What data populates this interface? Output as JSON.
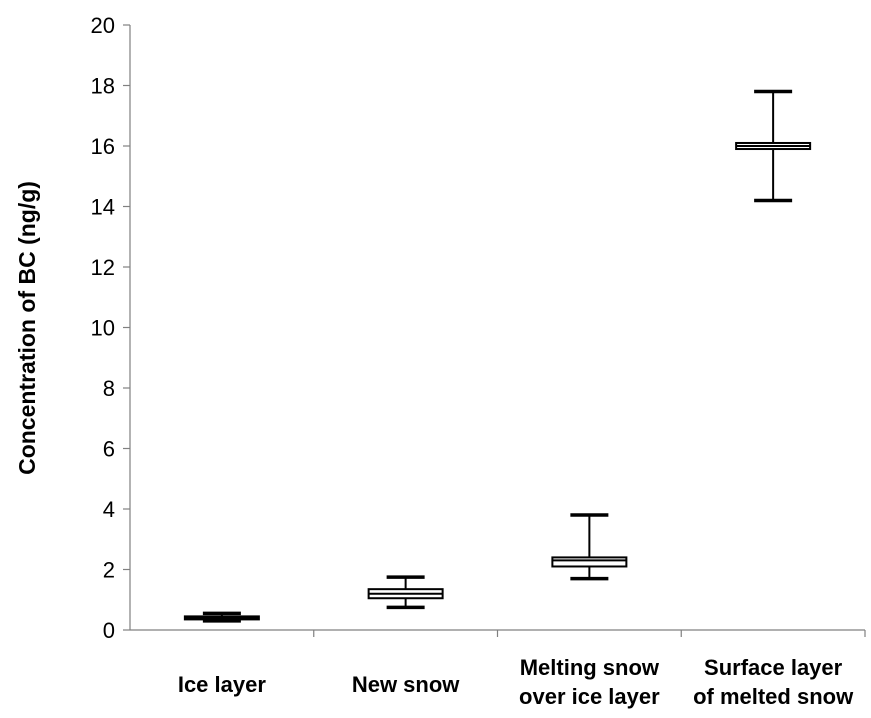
{
  "chart_data": {
    "type": "box",
    "title": "",
    "xlabel": "",
    "ylabel": "Concentration of BC (ng/g)",
    "ylim": [
      0,
      20
    ],
    "yticks": [
      0,
      2,
      4,
      6,
      8,
      10,
      12,
      14,
      16,
      18,
      20
    ],
    "grid": false,
    "legend": "none",
    "categories": [
      {
        "lines": [
          "Ice layer"
        ]
      },
      {
        "lines": [
          "New snow"
        ]
      },
      {
        "lines": [
          "Melting snow",
          "over ice layer"
        ]
      },
      {
        "lines": [
          "Surface layer",
          "of melted snow"
        ]
      }
    ],
    "boxes": [
      {
        "min": 0.3,
        "q1": 0.35,
        "median": 0.4,
        "q3": 0.45,
        "max": 0.55
      },
      {
        "min": 0.75,
        "q1": 1.05,
        "median": 1.2,
        "q3": 1.35,
        "max": 1.75
      },
      {
        "min": 1.7,
        "q1": 2.1,
        "median": 2.3,
        "q3": 2.4,
        "max": 3.8
      },
      {
        "min": 14.2,
        "q1": 15.9,
        "median": 16.0,
        "q3": 16.1,
        "max": 17.8
      }
    ],
    "colors": {
      "axis": "#808080",
      "box": "#000000",
      "fill": "#ffffff"
    }
  }
}
